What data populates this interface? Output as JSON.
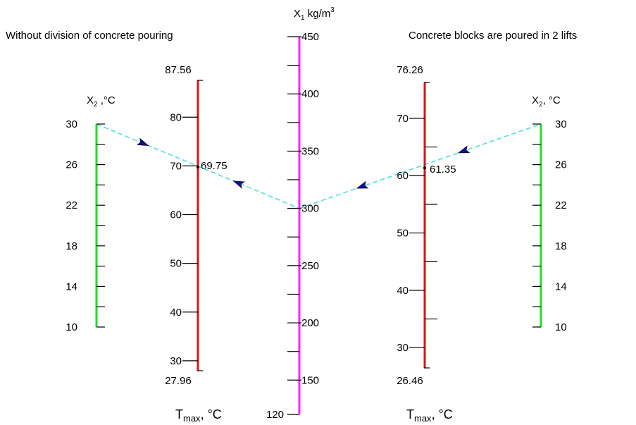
{
  "header": {
    "left_title": "Without division of concrete pouring",
    "right_title": "Concrete blocks are poured in 2 lifts"
  },
  "colors": {
    "x2_scale": "#22dd22",
    "tmax_scale": "#e01010",
    "x1_scale": "#ff20ff",
    "isopleth": "#44dddd",
    "arrow": "#1010a0"
  },
  "center_axis": {
    "label_x": "X",
    "label_sub": "1",
    "label_unit": " kg/m",
    "label_sup": "3",
    "min": 120,
    "max": 450,
    "labeled_ticks": [
      {
        "value": 450,
        "text": "450"
      },
      {
        "value": 400,
        "text": "400"
      },
      {
        "value": 350,
        "text": "350"
      },
      {
        "value": 300,
        "text": "300"
      },
      {
        "value": 250,
        "text": "250"
      },
      {
        "value": 200,
        "text": "200"
      },
      {
        "value": 150,
        "text": "150"
      },
      {
        "value": 120,
        "text": "120"
      }
    ],
    "minor_ticks": [
      425,
      375,
      325,
      275,
      225,
      175
    ]
  },
  "left_x2_axis": {
    "label_x": "X",
    "label_sub": "2",
    "label_unit": " ,°C",
    "min": 10,
    "max": 30,
    "labeled_ticks": [
      {
        "value": 30,
        "text": "30"
      },
      {
        "value": 26,
        "text": "26"
      },
      {
        "value": 22,
        "text": "22"
      },
      {
        "value": 18,
        "text": "18"
      },
      {
        "value": 14,
        "text": "14"
      },
      {
        "value": 10,
        "text": "10"
      }
    ],
    "minor_ticks": [
      28,
      24,
      20,
      16,
      12
    ]
  },
  "right_x2_axis": {
    "label_x": "X",
    "label_sub": "2",
    "label_unit": ", °C",
    "min": 10,
    "max": 30,
    "labeled_ticks": [
      {
        "value": 30,
        "text": "30"
      },
      {
        "value": 26,
        "text": "26"
      },
      {
        "value": 22,
        "text": "22"
      },
      {
        "value": 18,
        "text": "18"
      },
      {
        "value": 14,
        "text": "14"
      },
      {
        "value": 10,
        "text": "10"
      }
    ],
    "minor_ticks": [
      28,
      24,
      20,
      16,
      12
    ]
  },
  "left_tmax_axis": {
    "label_t": "T",
    "label_sub": "max",
    "label_unit": ", °C",
    "min": 27.96,
    "max": 87.56,
    "top_text": "87.56",
    "bottom_text": "27.96",
    "labeled_ticks": [
      {
        "value": 80,
        "text": "80"
      },
      {
        "value": 70,
        "text": "70"
      },
      {
        "value": 60,
        "text": "60"
      },
      {
        "value": 50,
        "text": "50"
      },
      {
        "value": 40,
        "text": "40"
      },
      {
        "value": 30,
        "text": "30"
      }
    ],
    "result": {
      "value": 69.75,
      "text": "69.75"
    }
  },
  "right_tmax_axis": {
    "label_t": "T",
    "label_sub": "max",
    "label_unit": ", °C",
    "min": 26.46,
    "max": 76.26,
    "top_text": "76.26",
    "bottom_text": "26.46",
    "labeled_ticks": [
      {
        "value": 70,
        "text": "70"
      },
      {
        "value": 60,
        "text": "60"
      },
      {
        "value": 50,
        "text": "50"
      },
      {
        "value": 40,
        "text": "40"
      },
      {
        "value": 30,
        "text": "30"
      }
    ],
    "minor_ticks": [
      65,
      55,
      45,
      35
    ],
    "result": {
      "value": 61.35,
      "text": "61.35"
    }
  },
  "isopleths": {
    "x1_value": 300,
    "x2_value": 30
  }
}
